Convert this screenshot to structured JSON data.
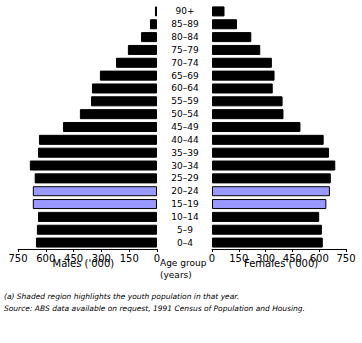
{
  "chart_data": [
    {
      "type": "bar",
      "orientation": "horizontal",
      "tick_labels": "x",
      "xlabel": "Males ('000)",
      "ylabel": "Age group\n(years)",
      "annotations": [
        "(a) Shaded region highlights the youth population in that year.",
        "Source: ABS data available on request, 1991 Census of Population and Housing."
      ],
      "categories": [
        "0–4",
        "5–9",
        "10–14",
        "15–19",
        "20–24",
        "25–29",
        "30–34",
        "35–39",
        "40–44",
        "45–49",
        "50–54",
        "55–59",
        "60–64",
        "65–69",
        "70–74",
        "75–79",
        "80–84",
        "85–89",
        "90+"
      ],
      "values": [
        653,
        648,
        642,
        670,
        670,
        660,
        686,
        642,
        637,
        507,
        416,
        356,
        351,
        308,
        221,
        157,
        86,
        38,
        11
      ],
      "colors": [
        "#000000",
        "#000000",
        "#000000",
        "#9999ff",
        "#9999ff",
        "#000000",
        "#000000",
        "#000000",
        "#000000",
        "#000000",
        "#000000",
        "#000000",
        "#000000",
        "#000000",
        "#000000",
        "#000000",
        "#000000",
        "#000000",
        "#000000"
      ],
      "xlim": [
        750,
        0
      ],
      "xticks": [
        750,
        600,
        450,
        300,
        150,
        0
      ],
      "grid": false
    },
    {
      "type": "bar",
      "orientation": "horizontal",
      "tick_labels": true,
      "xlabel": "Females ('000)",
      "categories": [
        "0–4",
        "5–9",
        "10–14",
        "15–19",
        "20–24",
        "25–29",
        "30–34",
        "35–39",
        "40–44",
        "45–49",
        "50–54",
        "55–59",
        "60–64",
        "65–69",
        "70–74",
        "75–79",
        "80–84",
        "85–89",
        "90+"
      ],
      "values": [
        620,
        615,
        600,
        640,
        660,
        665,
        690,
        655,
        625,
        495,
        400,
        395,
        340,
        350,
        335,
        270,
        220,
        140,
        70
      ],
      "colors": [
        "#000000",
        "#000000",
        "#000000",
        "#9999ff",
        "#9999ff",
        "#000000",
        "#000000",
        "#000000",
        "#000000",
        "#000000",
        "#000000",
        "#000000",
        "#000000",
        "#000000",
        "#000000",
        "#000000",
        "#000000",
        "#000000",
        "#000000"
      ],
      "xlim": [
        0,
        750
      ],
      "xticks": [
        0,
        150,
        300,
        450,
        600,
        750
      ],
      "grid": false
    }
  ]
}
